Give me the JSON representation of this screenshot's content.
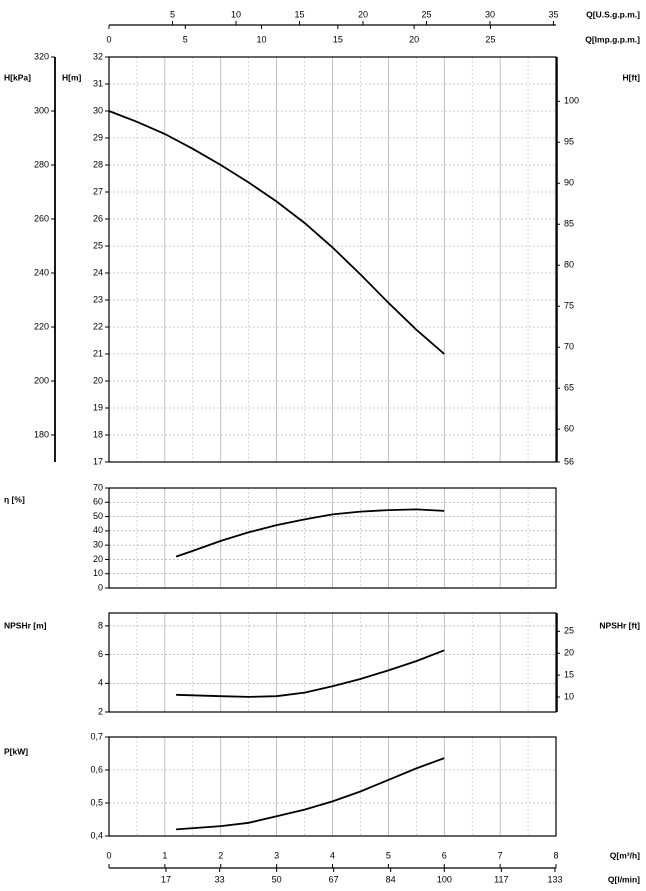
{
  "chart_data": [
    {
      "type": "line",
      "ylabel": "H[m]",
      "xlim": [
        0,
        8
      ],
      "ylim": [
        17,
        32
      ],
      "yticks": [
        17,
        18,
        19,
        20,
        21,
        22,
        23,
        24,
        25,
        26,
        27,
        28,
        29,
        30,
        31,
        32
      ],
      "xgrid": [
        0.5,
        1,
        1.5,
        2,
        2.5,
        3,
        3.5,
        4,
        4.5,
        5,
        5.5,
        6,
        6.5,
        7,
        7.5
      ],
      "y3label": "H[kPa]",
      "y3lim": [
        170,
        320
      ],
      "y3ticks": [
        180,
        200,
        220,
        240,
        260,
        280,
        300,
        320
      ],
      "y2label": "H[ft]",
      "y2lim": [
        56,
        105.4
      ],
      "y2ticks": [
        56,
        60,
        65,
        70,
        75,
        80,
        85,
        90,
        95,
        100
      ],
      "top_axes": [
        {
          "label": "Q[U.S.g.p.m.]",
          "xlim": [
            0,
            35.2
          ],
          "xticks": [
            5,
            10,
            15,
            20,
            25,
            30,
            35
          ]
        },
        {
          "label": "Q[Imp.g.p.m.]",
          "xlim": [
            0,
            29.3
          ],
          "xticks": [
            0,
            5,
            10,
            15,
            20,
            25
          ]
        }
      ],
      "color": "#000000",
      "x": [
        0,
        0.5,
        1,
        1.5,
        2,
        2.5,
        3,
        3.5,
        4,
        4.5,
        5,
        5.5,
        6
      ],
      "values": [
        30,
        29.6,
        29.15,
        28.6,
        28.0,
        27.35,
        26.65,
        25.85,
        24.95,
        23.95,
        22.9,
        21.9,
        21.0
      ]
    },
    {
      "type": "line",
      "ylabel": "η [%]",
      "xlim": [
        0,
        8
      ],
      "ylim": [
        0,
        70
      ],
      "yticks": [
        0,
        10,
        20,
        30,
        40,
        50,
        60,
        70
      ],
      "xgrid": [
        0.5,
        1,
        1.5,
        2,
        2.5,
        3,
        3.5,
        4,
        4.5,
        5,
        5.5,
        6,
        6.5,
        7,
        7.5
      ],
      "color": "#000000",
      "x": [
        1.2,
        1.5,
        2,
        2.5,
        3,
        3.5,
        4,
        4.5,
        5,
        5.5,
        6
      ],
      "values": [
        22,
        26,
        33,
        39,
        44,
        48,
        51.5,
        53.5,
        54.5,
        55,
        54
      ]
    },
    {
      "type": "line",
      "ylabel": "NPSHr [m]",
      "xlim": [
        0,
        8
      ],
      "ylim": [
        2,
        8.9
      ],
      "yticks": [
        2,
        4,
        6,
        8
      ],
      "xgrid": [
        0.5,
        1,
        1.5,
        2,
        2.5,
        3,
        3.5,
        4,
        4.5,
        5,
        5.5,
        6,
        6.5,
        7,
        7.5
      ],
      "y2label": "NPSHr [ft]",
      "y2lim": [
        6.56,
        29.2
      ],
      "y2ticks": [
        10,
        15,
        20,
        25
      ],
      "color": "#000000",
      "x": [
        1.2,
        2,
        2.5,
        3,
        3.5,
        4,
        4.5,
        5,
        5.5,
        6
      ],
      "values": [
        3.2,
        3.1,
        3.05,
        3.1,
        3.35,
        3.8,
        4.3,
        4.9,
        5.55,
        6.3
      ]
    },
    {
      "type": "line",
      "ylabel": "P[kW]",
      "xlim": [
        0,
        8
      ],
      "ylim": [
        0.4,
        0.7
      ],
      "yticks": [
        {
          "value": 0.4,
          "label": "0,4"
        },
        {
          "value": 0.5,
          "label": "0,5"
        },
        {
          "value": 0.6,
          "label": "0,6"
        },
        {
          "value": 0.7,
          "label": "0,7"
        }
      ],
      "xgrid": [
        0.5,
        1,
        1.5,
        2,
        2.5,
        3,
        3.5,
        4,
        4.5,
        5,
        5.5,
        6,
        6.5,
        7,
        7.5
      ],
      "bottom_axes": [
        {
          "label": "Q[m³/h]",
          "xlim": [
            0,
            8
          ],
          "xticks": [
            0,
            1,
            2,
            3,
            4,
            5,
            6,
            7,
            8
          ]
        },
        {
          "label": "Q[l/min]",
          "xlim": [
            0,
            133.3
          ],
          "xticks": [
            17,
            33,
            50,
            67,
            84,
            100,
            117,
            133
          ]
        }
      ],
      "color": "#000000",
      "x": [
        1.2,
        2,
        2.5,
        3,
        3.5,
        4,
        4.5,
        5,
        5.5,
        6
      ],
      "values": [
        0.42,
        0.43,
        0.44,
        0.46,
        0.48,
        0.505,
        0.535,
        0.57,
        0.605,
        0.636
      ]
    }
  ]
}
